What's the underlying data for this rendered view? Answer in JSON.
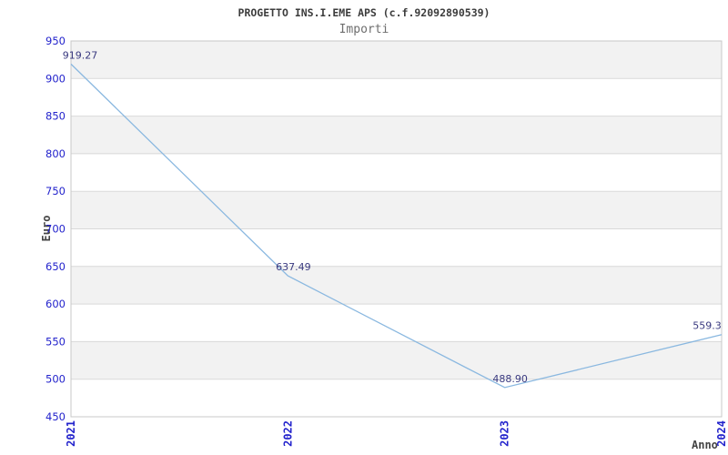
{
  "header": {
    "title": "PROGETTO INS.I.EME APS (c.f.92092890539)",
    "subtitle": "Importi"
  },
  "chart_data": {
    "type": "line",
    "title": "PROGETTO INS.I.EME APS (c.f.92092890539)",
    "subtitle": "Importi",
    "xlabel": "Anno",
    "ylabel": "Euro",
    "x": [
      "2021",
      "2022",
      "2023",
      "2024"
    ],
    "values": [
      919.27,
      637.49,
      488.9,
      559.3
    ],
    "point_labels": [
      "919.27",
      "637.49",
      "488.90",
      "559.3"
    ],
    "ylim": [
      450,
      950
    ],
    "ytick_step": 50,
    "yticks": [
      450,
      500,
      550,
      600,
      650,
      700,
      750,
      800,
      850,
      900,
      950
    ],
    "grid": "alternating-horizontal-bands",
    "legend": "none",
    "colors": {
      "line": "#8ab8e0",
      "band_gray": "#f2f2f2",
      "band_white": "#ffffff",
      "grid_line": "#d9d9d9",
      "frame": "#c8c8c8",
      "tick_label": "#2323cc",
      "point_label": "#3a3a80",
      "title_text": "#3c3c3c",
      "subtitle_text": "#6e6e6e",
      "axis_title_text": "#444444"
    }
  }
}
